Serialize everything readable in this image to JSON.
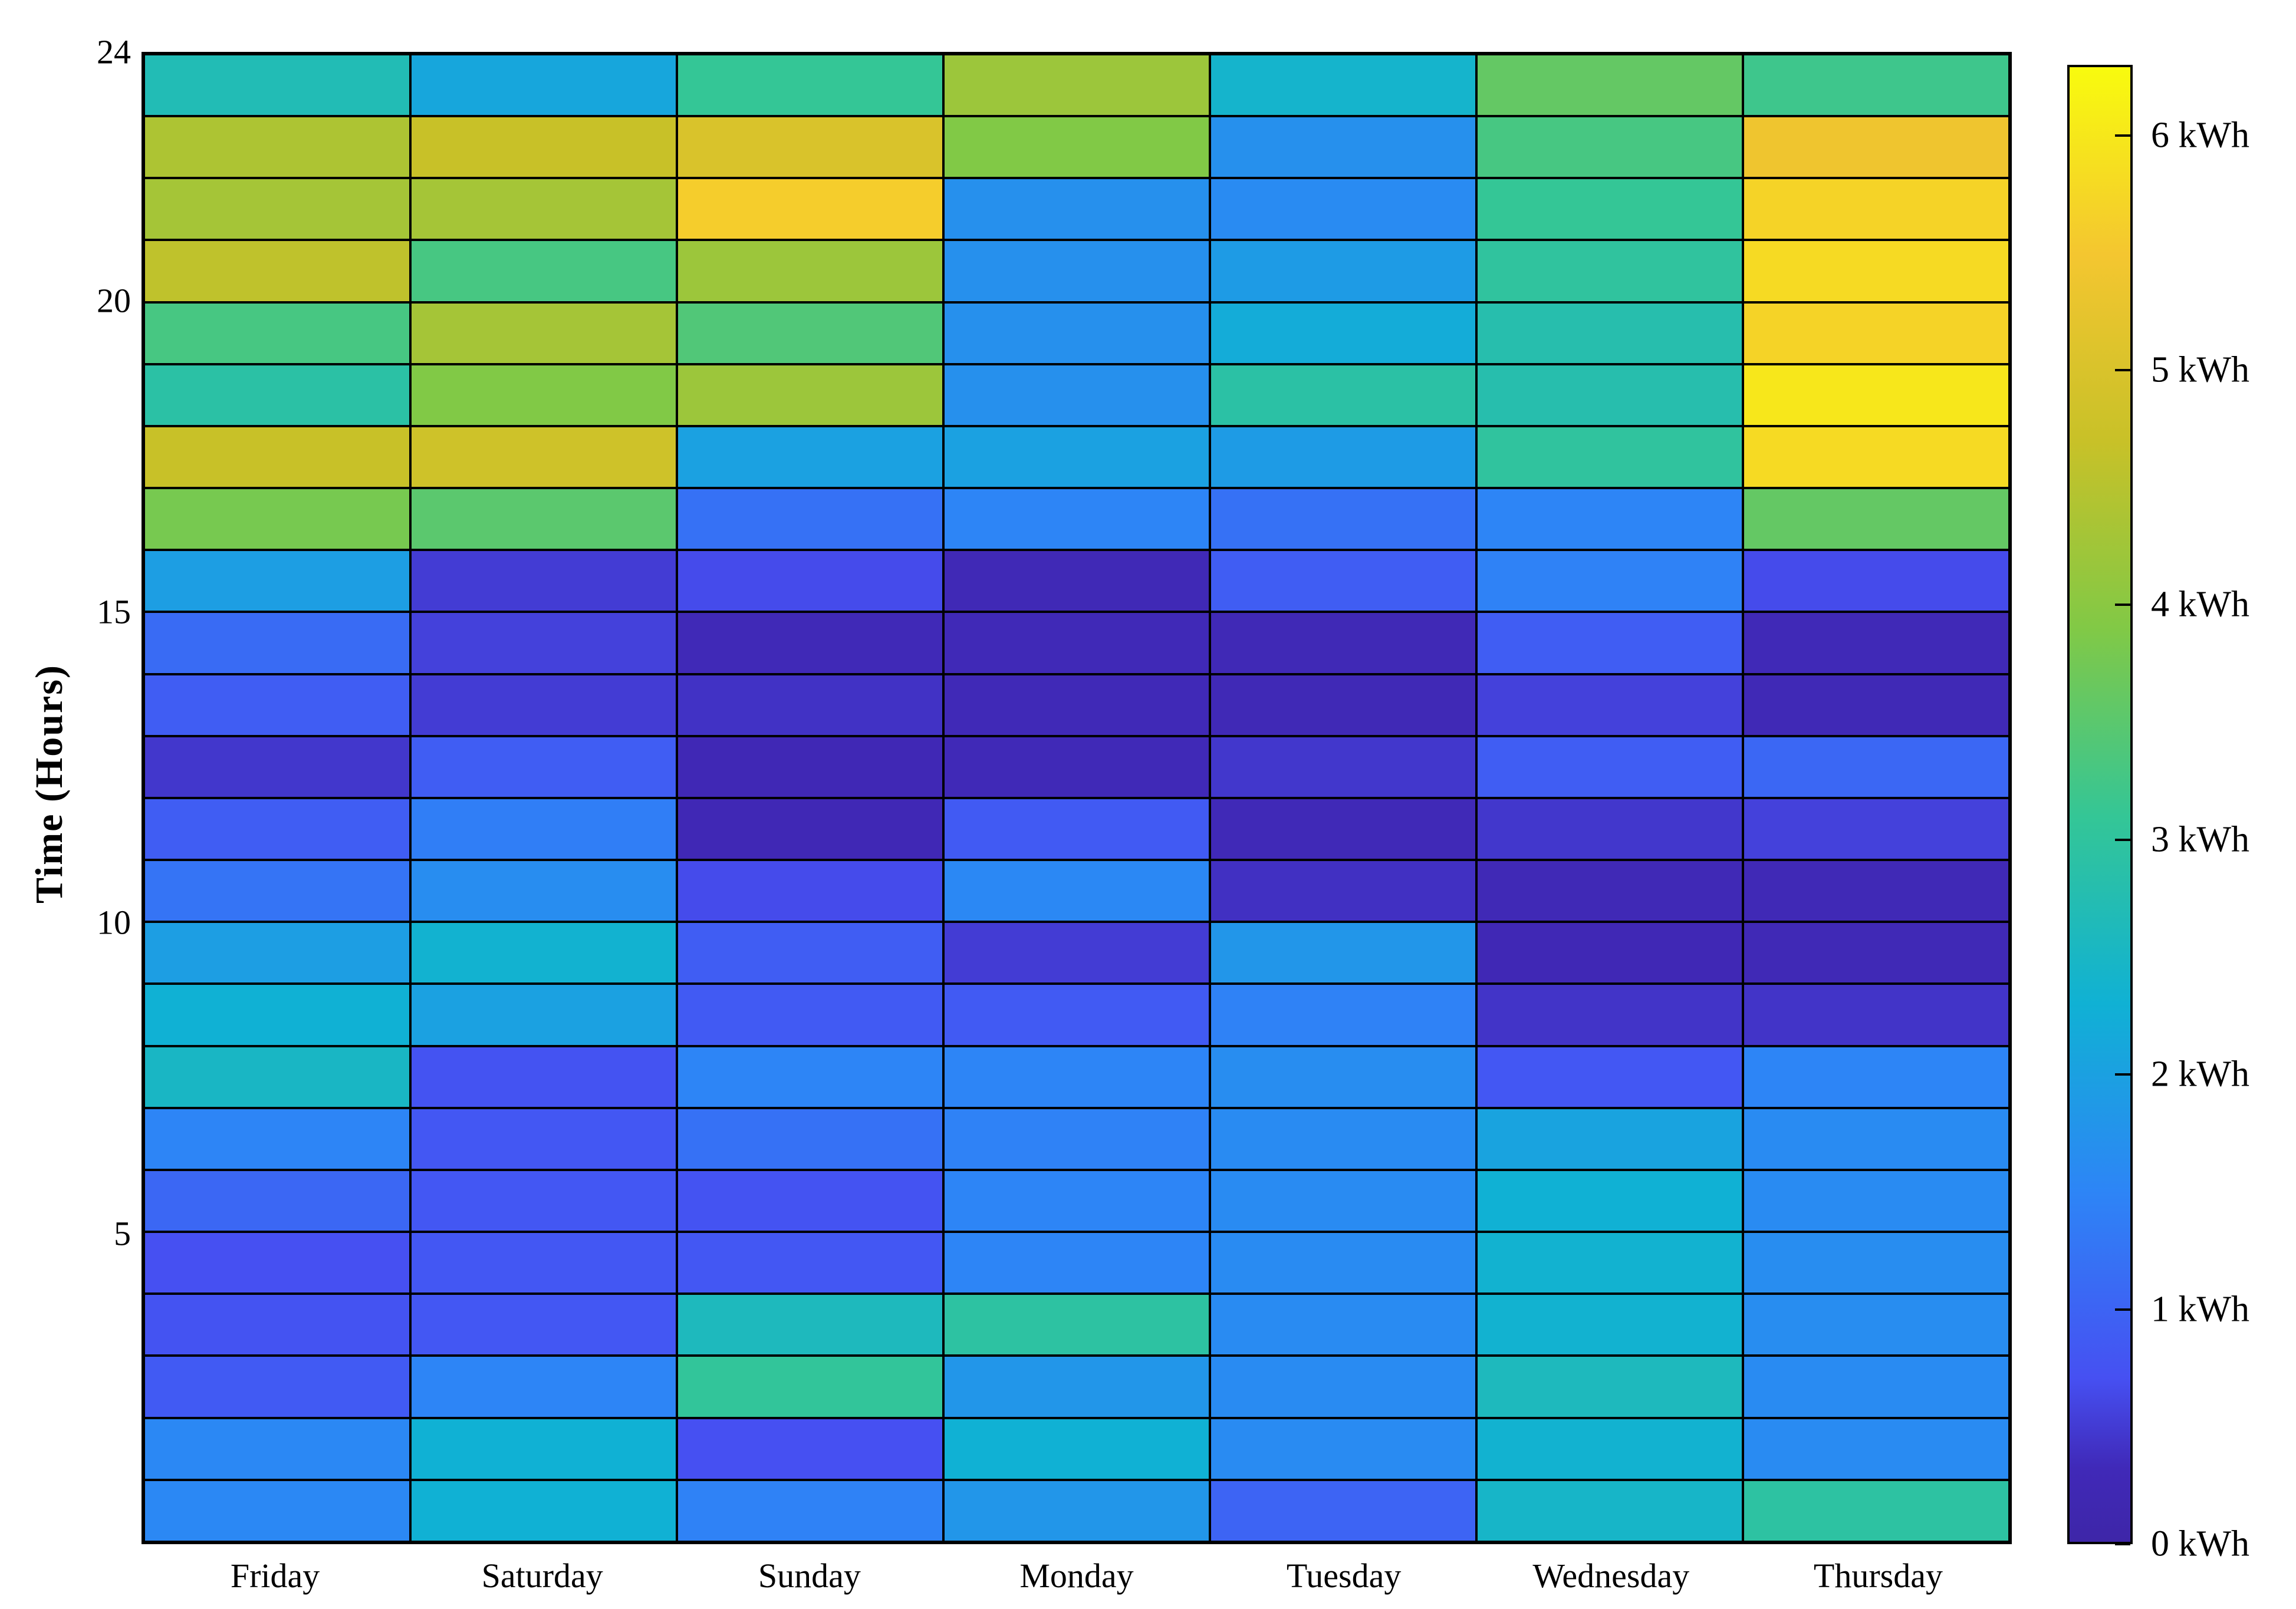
{
  "figure": {
    "background_color": "#ffffff",
    "grid_line_color": "#000000",
    "border_color": "#000000"
  },
  "chart_data": {
    "type": "heatmap",
    "title": "",
    "xlabel": "",
    "ylabel": "Time (Hours)",
    "unit": "kWh",
    "legend_position": "colorbar-right",
    "grid_on": true,
    "columns": [
      "Friday",
      "Saturday",
      "Sunday",
      "Monday",
      "Tuesday",
      "Wednesday",
      "Thursday"
    ],
    "rows_hours_top_to_bottom": [
      24,
      23,
      22,
      21,
      20,
      19,
      18,
      17,
      16,
      15,
      14,
      13,
      12,
      11,
      10,
      9,
      8,
      7,
      6,
      5,
      4,
      3,
      2,
      1
    ],
    "y_tick_hours": [
      24,
      20,
      15,
      10,
      5
    ],
    "y_tick_labels": [
      "24",
      "20",
      "15",
      "10",
      "5"
    ],
    "value_range": [
      0,
      6.3
    ],
    "colorbar": {
      "min": 0,
      "max": 6.3,
      "tick_values": [
        6,
        5,
        4,
        3,
        2,
        1,
        0
      ],
      "tick_labels": [
        "6 kWh",
        "5 kWh",
        "4 kWh",
        "3 kWh",
        "2 kWh",
        "1 kWh",
        "0 kWh"
      ]
    },
    "colormap_name": "parula",
    "colormap_anchors": [
      {
        "t": 0.0,
        "rgb": [
          62,
          38,
          168
        ]
      },
      {
        "t": 0.05,
        "rgb": [
          64,
          41,
          184
        ]
      },
      {
        "t": 0.111,
        "rgb": [
          70,
          80,
          242
        ]
      },
      {
        "t": 0.238,
        "rgb": [
          45,
          133,
          246
        ]
      },
      {
        "t": 0.365,
        "rgb": [
          16,
          177,
          212
        ]
      },
      {
        "t": 0.492,
        "rgb": [
          52,
          198,
          150
        ]
      },
      {
        "t": 0.619,
        "rgb": [
          129,
          201,
          70
        ]
      },
      {
        "t": 0.746,
        "rgb": [
          200,
          193,
          40
        ]
      },
      {
        "t": 0.873,
        "rgb": [
          244,
          198,
          48
        ]
      },
      {
        "t": 1.0,
        "rgb": [
          248,
          251,
          14
        ]
      }
    ],
    "values": [
      [
        2.7,
        2.1,
        3.1,
        4.2,
        2.4,
        3.6,
        3.2
      ],
      [
        4.4,
        4.7,
        5.0,
        3.9,
        1.7,
        3.3,
        5.4
      ],
      [
        4.3,
        4.3,
        5.6,
        1.7,
        1.6,
        3.1,
        5.7
      ],
      [
        4.6,
        3.3,
        4.2,
        1.7,
        1.9,
        3.0,
        5.8
      ],
      [
        3.3,
        4.3,
        3.4,
        1.7,
        2.2,
        2.8,
        5.7
      ],
      [
        2.9,
        3.9,
        4.2,
        1.7,
        2.9,
        2.8,
        6.0
      ],
      [
        4.7,
        4.8,
        2.0,
        2.0,
        1.9,
        3.0,
        5.8
      ],
      [
        3.8,
        3.5,
        1.2,
        1.5,
        1.2,
        1.5,
        3.6
      ],
      [
        1.95,
        0.5,
        0.65,
        0.27,
        0.9,
        1.45,
        0.65
      ],
      [
        1.1,
        0.55,
        0.3,
        0.3,
        0.27,
        0.9,
        0.3
      ],
      [
        0.9,
        0.5,
        0.4,
        0.3,
        0.28,
        0.55,
        0.28
      ],
      [
        0.45,
        0.9,
        0.25,
        0.3,
        0.45,
        0.9,
        1.05
      ],
      [
        0.9,
        1.4,
        0.25,
        0.85,
        0.3,
        0.45,
        0.55
      ],
      [
        1.25,
        1.65,
        0.65,
        1.55,
        0.38,
        0.27,
        0.27
      ],
      [
        1.95,
        2.35,
        0.9,
        0.5,
        1.8,
        0.25,
        0.27
      ],
      [
        2.3,
        2.0,
        0.85,
        0.85,
        1.45,
        0.42,
        0.42
      ],
      [
        2.5,
        0.75,
        1.5,
        1.5,
        1.65,
        0.8,
        1.5
      ],
      [
        1.5,
        0.8,
        1.2,
        1.45,
        1.6,
        2.05,
        1.6
      ],
      [
        1.05,
        0.8,
        0.75,
        1.5,
        1.6,
        2.3,
        1.6
      ],
      [
        0.7,
        0.8,
        0.8,
        1.5,
        1.6,
        2.35,
        1.65
      ],
      [
        0.75,
        0.8,
        2.6,
        2.95,
        1.6,
        2.35,
        1.65
      ],
      [
        0.85,
        1.5,
        3.05,
        1.8,
        1.6,
        2.6,
        1.6
      ],
      [
        1.55,
        2.3,
        0.7,
        2.3,
        1.6,
        2.35,
        1.6
      ],
      [
        1.55,
        2.3,
        1.45,
        1.8,
        1.0,
        2.45,
        2.95
      ]
    ]
  }
}
